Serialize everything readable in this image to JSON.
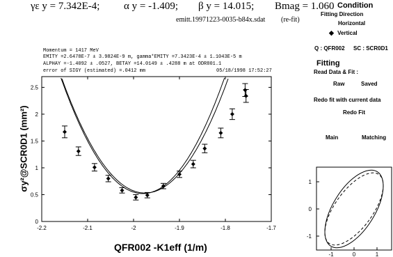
{
  "header": {
    "gamma_emit": "γε y = 7.342E-4;",
    "alpha": "α y = -1.409;",
    "beta": "β y = 14.015;",
    "bmag": "Bmag = 1.060",
    "filename": "emitt.19971223-0035-b84x.sdat",
    "refit": "(re-fit)"
  },
  "info": {
    "momentum": "Momentum = 1417 MeV",
    "emity": "EMITY =2.6478E-7 ± 3.9824E-9 m,  gamma*EMITY =7.3423E-4 ± 1.1043E-5 m",
    "alphay": "ALPHAY =-1.4092 ± .0527,  BETAY =14.0149 ± .4288 m    at ODR801.1",
    "error": "error of SIGY (estimated) =.0412 mm",
    "timestamp": "05/18/1998 17:52:27"
  },
  "right_panel": {
    "condition_title": "Condition",
    "fitting_direction_label": "Fitting Direction",
    "horizontal_label": "Horizontal",
    "vertical_label": "Vertical",
    "quad_label": "Q : QFR002",
    "sc_label": "SC : SCR0D1",
    "fitting_title": "Fitting",
    "read_fit_label": "Read Data & Fit :",
    "raw_button": "Raw",
    "saved_button": "Saved",
    "redo_label": "Redo fit with current data",
    "redo_button": "Redo Fit",
    "main_button": "Main",
    "matching_button": "Matching",
    "selected_direction": "Vertical"
  },
  "chart_data": {
    "type": "scatter",
    "xlabel": "QFR002 -K1eff (1/m)",
    "ylabel": "σy²@SCR0D1 (mm²)",
    "xlim": [
      -2.2,
      -1.7
    ],
    "ylim": [
      0,
      2.7
    ],
    "x_ticks": [
      "-2.2",
      "-2.1",
      "-2",
      "-1.9",
      "-1.8",
      "-1.7"
    ],
    "y_ticks": [
      "0",
      "0.5",
      "1",
      "1.5",
      "2",
      "2.5"
    ],
    "grid": false,
    "points": [
      {
        "x": -2.15,
        "y": 1.67,
        "err": 0.11
      },
      {
        "x": -2.12,
        "y": 1.31,
        "err": 0.08
      },
      {
        "x": -2.085,
        "y": 1.01,
        "err": 0.07
      },
      {
        "x": -2.055,
        "y": 0.8,
        "err": 0.06
      },
      {
        "x": -2.025,
        "y": 0.58,
        "err": 0.05
      },
      {
        "x": -1.995,
        "y": 0.45,
        "err": 0.05
      },
      {
        "x": -1.97,
        "y": 0.49,
        "err": 0.05
      },
      {
        "x": -1.935,
        "y": 0.66,
        "err": 0.05
      },
      {
        "x": -1.9,
        "y": 0.88,
        "err": 0.06
      },
      {
        "x": -1.87,
        "y": 1.07,
        "err": 0.07
      },
      {
        "x": -1.845,
        "y": 1.36,
        "err": 0.08
      },
      {
        "x": -1.81,
        "y": 1.65,
        "err": 0.09
      },
      {
        "x": -1.785,
        "y": 2.0,
        "err": 0.1
      },
      {
        "x": -1.757,
        "y": 2.45,
        "err": 0.12
      },
      {
        "x": -1.755,
        "y": 2.34,
        "err": 0.12
      }
    ],
    "fit_curves": [
      {
        "vertex_x": -1.98,
        "vertex_y": 0.52,
        "curvature": 68.0
      },
      {
        "vertex_x": -1.975,
        "vertex_y": 0.53,
        "curvature": 65.0
      }
    ]
  },
  "ellipse_data": {
    "x_ticks": [
      "-1",
      "0",
      "1"
    ],
    "y_ticks": [
      "1",
      "0",
      "-1"
    ]
  }
}
